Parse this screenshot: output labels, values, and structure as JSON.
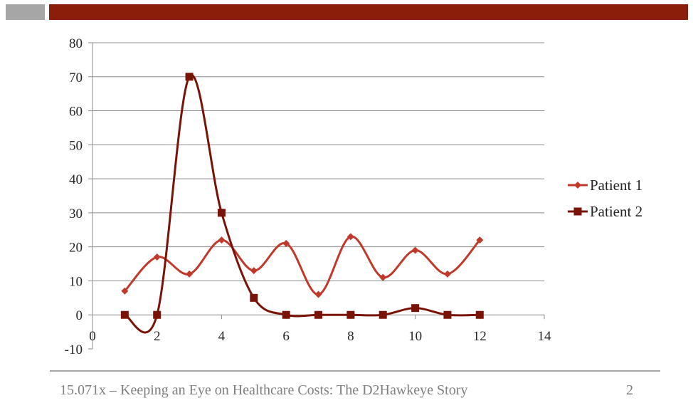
{
  "header": {
    "left_block_color": "#a6a6a6",
    "bar_color": "#8b1d0b"
  },
  "footer": {
    "title": "15.071x – Keeping an Eye on Healthcare Costs: The D2Hawkeye Story",
    "page_number": "2"
  },
  "chart_data": {
    "type": "line",
    "smoothed": true,
    "title": "",
    "xlabel": "",
    "ylabel": "",
    "xlim": [
      0,
      14
    ],
    "ylim": [
      -10,
      80
    ],
    "x_ticks": [
      "0",
      "2",
      "4",
      "6",
      "8",
      "10",
      "12",
      "14"
    ],
    "y_ticks": [
      "80",
      "70",
      "60",
      "50",
      "40",
      "30",
      "20",
      "10",
      "0",
      "-10"
    ],
    "grid": "horizontal",
    "legend_position": "right",
    "x": [
      1,
      2,
      3,
      4,
      5,
      6,
      7,
      8,
      9,
      10,
      11,
      12
    ],
    "series": [
      {
        "name": "Patient 1",
        "marker": "diamond",
        "color": "#c0392b",
        "values": [
          7,
          17,
          12,
          22,
          13,
          21,
          6,
          23,
          11,
          19,
          12,
          22
        ]
      },
      {
        "name": "Patient 2",
        "marker": "square",
        "color": "#7a1307",
        "values": [
          0,
          0,
          70,
          30,
          5,
          0,
          0,
          0,
          0,
          2,
          0,
          0
        ]
      }
    ]
  }
}
